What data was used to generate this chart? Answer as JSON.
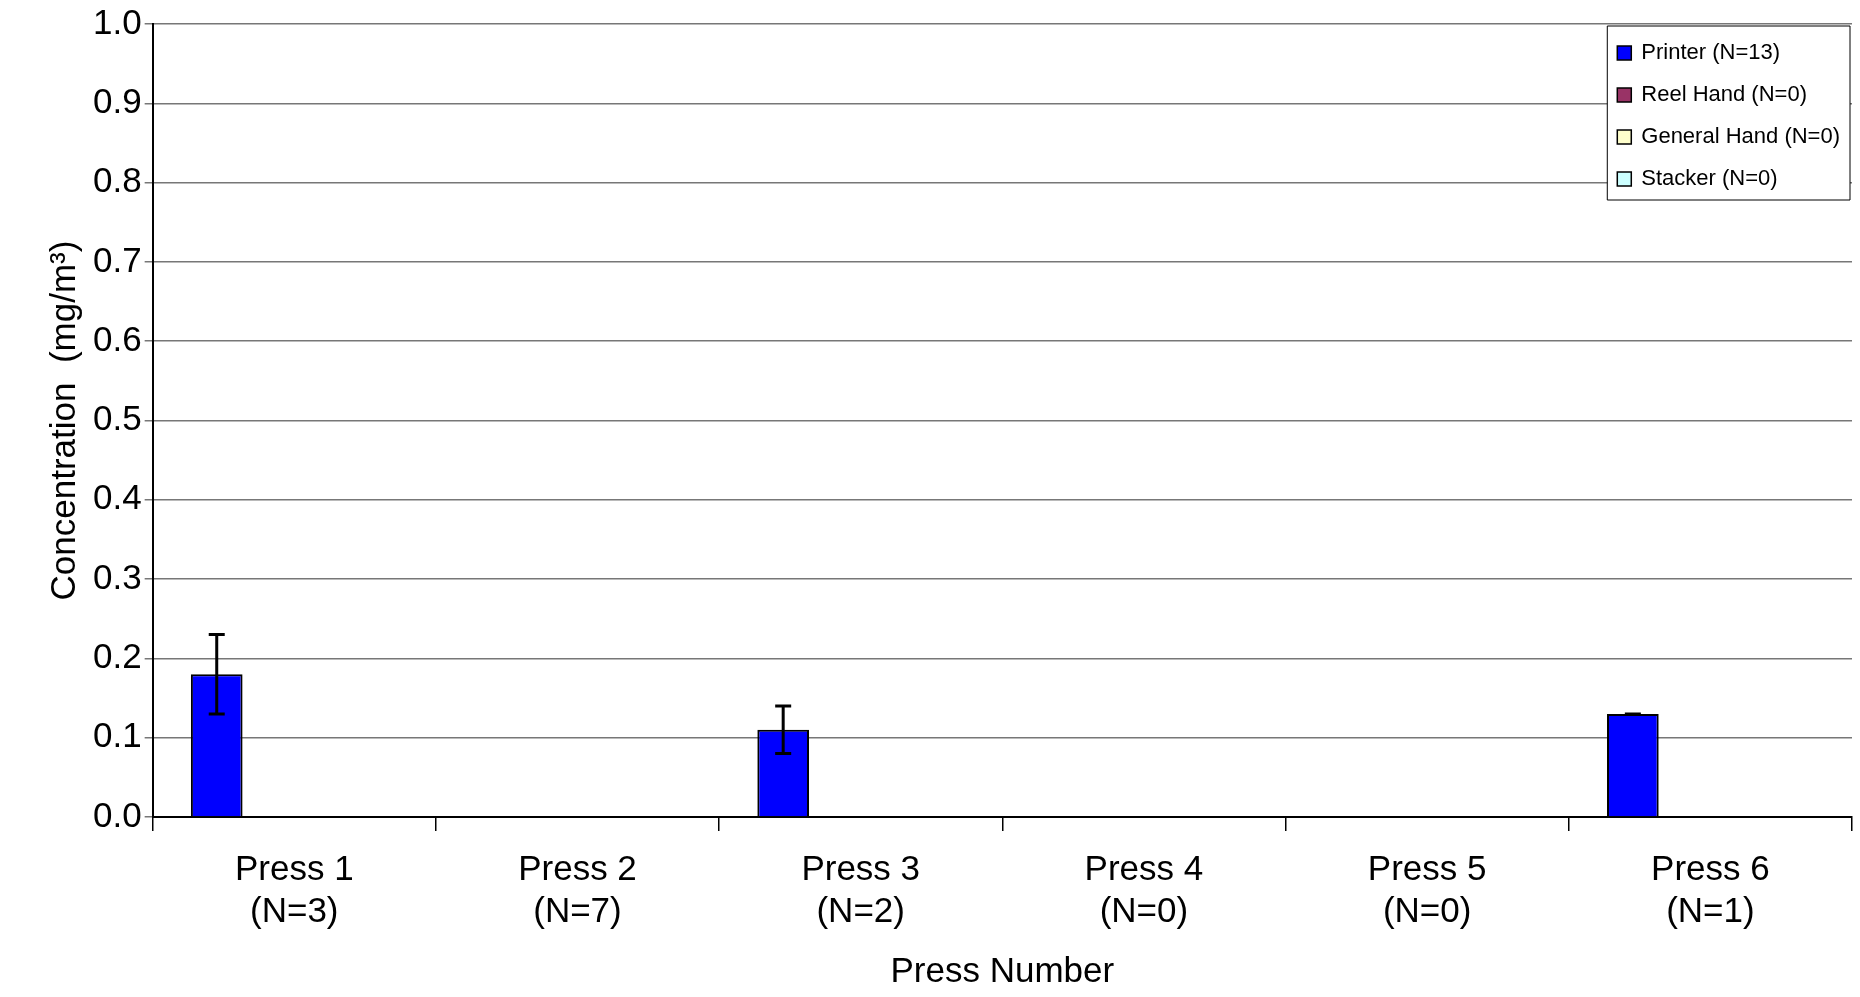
{
  "chart_data": {
    "type": "bar",
    "xlabel": "Press Number",
    "ylabel": "Concentration  (mg/m³)",
    "categories": [
      "Press 1\n(N=3)",
      "Press 2\n(N=7)",
      "Press 3\n(N=2)",
      "Press 4\n(N=0)",
      "Press 5\n(N=0)",
      "Press 6\n(N=1)"
    ],
    "series": [
      {
        "name": "Printer (N=13)",
        "color": "#0000ff",
        "values": [
          0.18,
          0,
          0.11,
          0,
          0,
          0.13
        ],
        "errors": [
          [
            0.13,
            0.23
          ],
          null,
          [
            0.08,
            0.14
          ],
          null,
          null,
          0
        ]
      },
      {
        "name": "Reel Hand (N=0)",
        "color": "#993366",
        "values": [
          null,
          null,
          null,
          null,
          null,
          null
        ]
      },
      {
        "name": "General Hand (N=0)",
        "color": "#ffffcc",
        "values": [
          null,
          null,
          null,
          null,
          null,
          null
        ]
      },
      {
        "name": "Stacker (N=0)",
        "color": "#ccffff",
        "values": [
          null,
          null,
          null,
          null,
          null,
          null
        ]
      }
    ],
    "ylim": [
      0,
      1
    ],
    "yticks": [
      {
        "value": 0,
        "label": "0.0"
      },
      {
        "value": 0.1,
        "label": "0.1"
      },
      {
        "value": 0.2,
        "label": "0.2"
      },
      {
        "value": 0.3,
        "label": "0.3"
      },
      {
        "value": 0.4,
        "label": "0.4"
      },
      {
        "value": 0.5,
        "label": "0.5"
      },
      {
        "value": 0.6,
        "label": "0.6"
      },
      {
        "value": 0.7,
        "label": "0.7"
      },
      {
        "value": 0.8,
        "label": "0.8"
      },
      {
        "value": 0.9,
        "label": "0.9"
      },
      {
        "value": 1,
        "label": "1.0"
      }
    ],
    "grid": "y",
    "legend": "top right"
  }
}
